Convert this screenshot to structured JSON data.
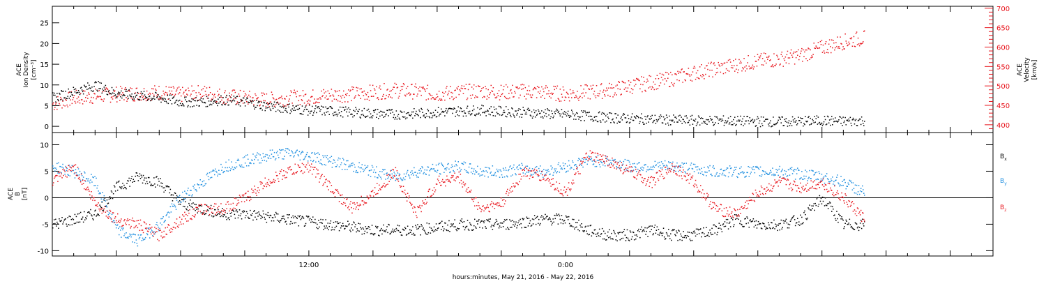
{
  "colors": {
    "black": "#000000",
    "red": "#e8141c",
    "blue": "#1f8fe0"
  },
  "footer": "hours:minutes, May 21, 2016 - May 22, 2016",
  "chart_data": [
    {
      "name": "ion-density-velocity-panel",
      "type": "scatter",
      "x_ticklabels": [
        "12:00",
        "0:00"
      ],
      "xlim_hours": [
        0,
        44
      ],
      "left_axis": {
        "label_lines": [
          "ACE",
          "Ion Density",
          "[cm⁻³]"
        ],
        "ylim": [
          -1.5,
          29
        ],
        "ticks": [
          0,
          5,
          10,
          15,
          20,
          25
        ]
      },
      "right_axis": {
        "label_lines": [
          "ACE",
          "Velocity",
          "[km/s]"
        ],
        "ylim": [
          380,
          705
        ],
        "ticks": [
          400,
          450,
          500,
          550,
          600,
          650,
          700
        ],
        "color": "#e8141c"
      },
      "series": [
        {
          "axis": "left",
          "color": "#000000",
          "points": [
            [
              0,
              7
            ],
            [
              1,
              8.5
            ],
            [
              2,
              10
            ],
            [
              3,
              8
            ],
            [
              4,
              7.5
            ],
            [
              5,
              7
            ],
            [
              6,
              6
            ],
            [
              7,
              6
            ],
            [
              8,
              6.5
            ],
            [
              9,
              6
            ],
            [
              10,
              5
            ],
            [
              11,
              4.5
            ],
            [
              12,
              4
            ],
            [
              13,
              3.8
            ],
            [
              14,
              3.5
            ],
            [
              15,
              3.2
            ],
            [
              16,
              3
            ],
            [
              17,
              3.2
            ],
            [
              18,
              3.5
            ],
            [
              19,
              3.8
            ],
            [
              20,
              4
            ],
            [
              21,
              3.7
            ],
            [
              22,
              3.5
            ],
            [
              23,
              3.2
            ],
            [
              24,
              3
            ],
            [
              25,
              2.6
            ],
            [
              26,
              2.2
            ],
            [
              27,
              2
            ],
            [
              28,
              1.8
            ],
            [
              29,
              1.6
            ],
            [
              30,
              1.5
            ],
            [
              31,
              1.5
            ],
            [
              32,
              1.4
            ],
            [
              33,
              1.3
            ],
            [
              34,
              1.2
            ],
            [
              35,
              1.3
            ],
            [
              36,
              1.5
            ],
            [
              37,
              1.3
            ],
            [
              38,
              1.5
            ]
          ]
        },
        {
          "axis": "right",
          "color": "#e8141c",
          "points": [
            [
              0,
              455
            ],
            [
              1,
              470
            ],
            [
              2,
              475
            ],
            [
              3,
              480
            ],
            [
              4,
              482
            ],
            [
              5,
              485
            ],
            [
              6,
              478
            ],
            [
              7,
              485
            ],
            [
              8,
              475
            ],
            [
              9,
              470
            ],
            [
              10,
              465
            ],
            [
              11,
              470
            ],
            [
              12,
              472
            ],
            [
              13,
              478
            ],
            [
              14,
              480
            ],
            [
              15,
              485
            ],
            [
              16,
              490
            ],
            [
              17,
              487
            ],
            [
              18,
              480
            ],
            [
              19,
              485
            ],
            [
              20,
              488
            ],
            [
              21,
              485
            ],
            [
              22,
              487
            ],
            [
              23,
              485
            ],
            [
              24,
              480
            ],
            [
              25,
              485
            ],
            [
              26,
              490
            ],
            [
              27,
              500
            ],
            [
              28,
              510
            ],
            [
              29,
              520
            ],
            [
              30,
              535
            ],
            [
              31,
              545
            ],
            [
              32,
              555
            ],
            [
              33,
              565
            ],
            [
              34,
              570
            ],
            [
              35,
              580
            ],
            [
              36,
              600
            ],
            [
              37,
              615
            ],
            [
              38,
              625
            ]
          ]
        }
      ]
    },
    {
      "name": "magnetic-field-panel",
      "type": "scatter",
      "x_ticklabels": [
        "12:00",
        "0:00"
      ],
      "xlim_hours": [
        0,
        44
      ],
      "left_axis": {
        "label_lines": [
          "ACE",
          "B",
          "[nT]"
        ],
        "ylim": [
          -11,
          12.3
        ],
        "ticks": [
          -10,
          -5,
          0,
          5,
          10
        ]
      },
      "zero_line": true,
      "legend_placement": "right",
      "series": [
        {
          "name": "Bx",
          "color": "#000000",
          "points": [
            [
              0,
              -5
            ],
            [
              1,
              -4
            ],
            [
              2,
              -3
            ],
            [
              3,
              2
            ],
            [
              4,
              4
            ],
            [
              5,
              3
            ],
            [
              6,
              -1
            ],
            [
              7,
              -2
            ],
            [
              8,
              -3
            ],
            [
              9,
              -3
            ],
            [
              10,
              -3.5
            ],
            [
              11,
              -4
            ],
            [
              12,
              -4.5
            ],
            [
              13,
              -5
            ],
            [
              14,
              -5.5
            ],
            [
              15,
              -6
            ],
            [
              16,
              -6
            ],
            [
              17,
              -6
            ],
            [
              18,
              -5.5
            ],
            [
              19,
              -5
            ],
            [
              20,
              -5
            ],
            [
              21,
              -5
            ],
            [
              22,
              -4.5
            ],
            [
              23,
              -4
            ],
            [
              24,
              -4
            ],
            [
              25,
              -6
            ],
            [
              26,
              -7
            ],
            [
              27,
              -7
            ],
            [
              28,
              -6
            ],
            [
              29,
              -7
            ],
            [
              30,
              -7
            ],
            [
              31,
              -6
            ],
            [
              32,
              -4
            ],
            [
              33,
              -5
            ],
            [
              34,
              -5
            ],
            [
              35,
              -4
            ],
            [
              36,
              0
            ],
            [
              37,
              -5
            ],
            [
              38,
              -5
            ]
          ]
        },
        {
          "name": "By",
          "color": "#1f8fe0",
          "points": [
            [
              0,
              6
            ],
            [
              1,
              5
            ],
            [
              2,
              3
            ],
            [
              3,
              -6
            ],
            [
              4,
              -8
            ],
            [
              5,
              -5
            ],
            [
              6,
              0
            ],
            [
              7,
              3
            ],
            [
              8,
              6
            ],
            [
              9,
              7
            ],
            [
              10,
              8
            ],
            [
              11,
              8.5
            ],
            [
              12,
              8
            ],
            [
              13,
              7
            ],
            [
              14,
              6
            ],
            [
              15,
              5
            ],
            [
              16,
              4
            ],
            [
              17,
              5
            ],
            [
              18,
              5.5
            ],
            [
              19,
              6
            ],
            [
              20,
              5
            ],
            [
              21,
              5
            ],
            [
              22,
              5.5
            ],
            [
              23,
              5
            ],
            [
              24,
              6
            ],
            [
              25,
              7
            ],
            [
              26,
              7
            ],
            [
              27,
              6
            ],
            [
              28,
              6
            ],
            [
              29,
              6
            ],
            [
              30,
              5.5
            ],
            [
              31,
              5
            ],
            [
              32,
              5
            ],
            [
              33,
              5
            ],
            [
              34,
              5
            ],
            [
              35,
              4.5
            ],
            [
              36,
              4
            ],
            [
              37,
              3
            ],
            [
              38,
              1
            ]
          ]
        },
        {
          "name": "Bz",
          "color": "#e8141c",
          "points": [
            [
              0,
              3
            ],
            [
              1,
              6
            ],
            [
              2,
              -1
            ],
            [
              3,
              -4
            ],
            [
              4,
              -5
            ],
            [
              5,
              -7
            ],
            [
              6,
              -4
            ],
            [
              7,
              -2
            ],
            [
              8,
              -2
            ],
            [
              9,
              0
            ],
            [
              10,
              3
            ],
            [
              11,
              5
            ],
            [
              12,
              6
            ],
            [
              13,
              2
            ],
            [
              14,
              -2
            ],
            [
              15,
              1
            ],
            [
              16,
              5
            ],
            [
              17,
              -3
            ],
            [
              18,
              3
            ],
            [
              19,
              4
            ],
            [
              20,
              -2
            ],
            [
              21,
              -1
            ],
            [
              22,
              5
            ],
            [
              23,
              4
            ],
            [
              24,
              1
            ],
            [
              25,
              8
            ],
            [
              26,
              7
            ],
            [
              27,
              5
            ],
            [
              28,
              3
            ],
            [
              29,
              6
            ],
            [
              30,
              3
            ],
            [
              31,
              -2
            ],
            [
              32,
              -3
            ],
            [
              33,
              1
            ],
            [
              34,
              3
            ],
            [
              35,
              2
            ],
            [
              36,
              3
            ],
            [
              37,
              0
            ],
            [
              38,
              -4
            ]
          ]
        }
      ]
    }
  ]
}
